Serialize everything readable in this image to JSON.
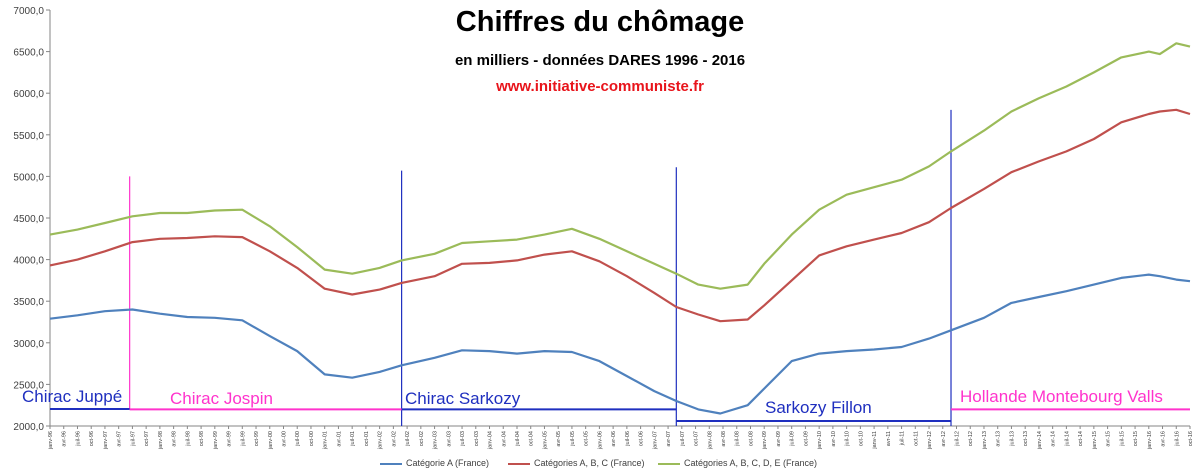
{
  "header": {
    "title": "Chiffres du chômage",
    "subtitle": "en milliers - données DARES 1996 - 2016",
    "source_url": "www.initiative-communiste.fr"
  },
  "colors": {
    "cat_a": "#4f81bd",
    "cat_abc": "#c0504d",
    "cat_abcde": "#9bbb59",
    "period_blue": "#1f2fbf",
    "period_magenta": "#ff33cc"
  },
  "periods": [
    {
      "label": "Chirac Juppé",
      "color": "#1f2fbf",
      "start": 1996.0
    },
    {
      "label": "Chirac Jospin",
      "color": "#ff33cc",
      "start": 1997.45
    },
    {
      "label": "Chirac Sarkozy",
      "color": "#1f2fbf",
      "start": 2002.4
    },
    {
      "label": "Sarkozy Fillon",
      "color": "#1f2fbf",
      "start": 2007.4
    },
    {
      "label": "Hollande Montebourg Valls",
      "color": "#ff33cc",
      "start": 2012.4
    }
  ],
  "chart_data": {
    "type": "line",
    "title": "Chiffres du chômage",
    "subtitle": "en milliers - données DARES 1996 - 2016",
    "xlabel": "",
    "ylabel": "",
    "ylim": [
      2000,
      7000
    ],
    "xlim": [
      1996.0,
      2016.75
    ],
    "y_ticks": [
      "2000,0",
      "2500,0",
      "3000,0",
      "3500,0",
      "4000,0",
      "4500,0",
      "5000,0",
      "5500,0",
      "6000,0",
      "6500,0",
      "7000,0"
    ],
    "x_tick_labels": [
      "janv-96",
      "avr-96",
      "juil-96",
      "oct-96",
      "janv-97",
      "avr-97",
      "juil-97",
      "oct-97",
      "janv-98",
      "avr-98",
      "juil-98",
      "oct-98",
      "janv-99",
      "avr-99",
      "juil-99",
      "oct-99",
      "janv-00",
      "avr-00",
      "juil-00",
      "oct-00",
      "janv-01",
      "avr-01",
      "juil-01",
      "oct-01",
      "janv-02",
      "avr-02",
      "juil-02",
      "oct-02",
      "janv-03",
      "avr-03",
      "juil-03",
      "oct-03",
      "janv-04",
      "avr-04",
      "juil-04",
      "oct-04",
      "janv-05",
      "avr-05",
      "juil-05",
      "oct-05",
      "janv-06",
      "avr-06",
      "juil-06",
      "oct-06",
      "janv-07",
      "avr-07",
      "juil-07",
      "oct-07",
      "janv-08",
      "avr-08",
      "juil-08",
      "oct-08",
      "janv-09",
      "avr-09",
      "juil-09",
      "oct-09",
      "janv-10",
      "avr-10",
      "juil-10",
      "oct-10",
      "janv-11",
      "avr-11",
      "juil-11",
      "oct-11",
      "janv-12",
      "avr-12",
      "juil-12",
      "oct-12",
      "janv-13",
      "avr-13",
      "juil-13",
      "oct-13",
      "janv-14",
      "avr-14",
      "juil-14",
      "oct-14",
      "janv-15",
      "avr-15",
      "juil-15",
      "oct-15",
      "janv-16",
      "avr-16",
      "juil-16",
      "oct-16"
    ],
    "grid": false,
    "legend_position": "bottom",
    "series": [
      {
        "name": "Catégorie A (France)",
        "color": "#4f81bd",
        "points": [
          [
            1996.0,
            3290
          ],
          [
            1996.5,
            3330
          ],
          [
            1997.0,
            3380
          ],
          [
            1997.5,
            3400
          ],
          [
            1998.0,
            3350
          ],
          [
            1998.5,
            3310
          ],
          [
            1999.0,
            3300
          ],
          [
            1999.5,
            3270
          ],
          [
            2000.0,
            3080
          ],
          [
            2000.5,
            2900
          ],
          [
            2001.0,
            2620
          ],
          [
            2001.5,
            2580
          ],
          [
            2002.0,
            2650
          ],
          [
            2002.4,
            2730
          ],
          [
            2003.0,
            2820
          ],
          [
            2003.5,
            2910
          ],
          [
            2004.0,
            2900
          ],
          [
            2004.5,
            2870
          ],
          [
            2005.0,
            2900
          ],
          [
            2005.5,
            2890
          ],
          [
            2006.0,
            2780
          ],
          [
            2006.5,
            2600
          ],
          [
            2007.0,
            2420
          ],
          [
            2007.4,
            2300
          ],
          [
            2007.8,
            2200
          ],
          [
            2008.2,
            2150
          ],
          [
            2008.7,
            2250
          ],
          [
            2009.0,
            2450
          ],
          [
            2009.5,
            2780
          ],
          [
            2010.0,
            2870
          ],
          [
            2010.5,
            2900
          ],
          [
            2011.0,
            2920
          ],
          [
            2011.5,
            2950
          ],
          [
            2012.0,
            3050
          ],
          [
            2012.4,
            3150
          ],
          [
            2013.0,
            3300
          ],
          [
            2013.5,
            3480
          ],
          [
            2014.0,
            3550
          ],
          [
            2014.5,
            3620
          ],
          [
            2015.0,
            3700
          ],
          [
            2015.5,
            3780
          ],
          [
            2016.0,
            3820
          ],
          [
            2016.2,
            3800
          ],
          [
            2016.5,
            3760
          ],
          [
            2016.75,
            3740
          ]
        ]
      },
      {
        "name": "Catégories A, B, C (France)",
        "color": "#c0504d",
        "points": [
          [
            1996.0,
            3930
          ],
          [
            1996.5,
            4000
          ],
          [
            1997.0,
            4100
          ],
          [
            1997.5,
            4210
          ],
          [
            1998.0,
            4250
          ],
          [
            1998.5,
            4260
          ],
          [
            1999.0,
            4280
          ],
          [
            1999.5,
            4270
          ],
          [
            2000.0,
            4100
          ],
          [
            2000.5,
            3900
          ],
          [
            2001.0,
            3650
          ],
          [
            2001.5,
            3580
          ],
          [
            2002.0,
            3640
          ],
          [
            2002.4,
            3720
          ],
          [
            2003.0,
            3800
          ],
          [
            2003.5,
            3950
          ],
          [
            2004.0,
            3960
          ],
          [
            2004.5,
            3990
          ],
          [
            2005.0,
            4060
          ],
          [
            2005.5,
            4100
          ],
          [
            2006.0,
            3980
          ],
          [
            2006.5,
            3800
          ],
          [
            2007.0,
            3600
          ],
          [
            2007.4,
            3430
          ],
          [
            2007.8,
            3340
          ],
          [
            2008.2,
            3260
          ],
          [
            2008.7,
            3280
          ],
          [
            2009.0,
            3450
          ],
          [
            2009.5,
            3750
          ],
          [
            2010.0,
            4050
          ],
          [
            2010.5,
            4160
          ],
          [
            2011.0,
            4240
          ],
          [
            2011.5,
            4320
          ],
          [
            2012.0,
            4450
          ],
          [
            2012.4,
            4620
          ],
          [
            2013.0,
            4850
          ],
          [
            2013.5,
            5050
          ],
          [
            2014.0,
            5180
          ],
          [
            2014.5,
            5300
          ],
          [
            2015.0,
            5450
          ],
          [
            2015.5,
            5650
          ],
          [
            2016.0,
            5750
          ],
          [
            2016.2,
            5780
          ],
          [
            2016.5,
            5800
          ],
          [
            2016.75,
            5750
          ]
        ]
      },
      {
        "name": "Catégories A, B, C, D, E (France)",
        "color": "#9bbb59",
        "points": [
          [
            1996.0,
            4300
          ],
          [
            1996.5,
            4360
          ],
          [
            1997.0,
            4440
          ],
          [
            1997.5,
            4520
          ],
          [
            1998.0,
            4560
          ],
          [
            1998.5,
            4560
          ],
          [
            1999.0,
            4590
          ],
          [
            1999.5,
            4600
          ],
          [
            2000.0,
            4400
          ],
          [
            2000.5,
            4150
          ],
          [
            2001.0,
            3880
          ],
          [
            2001.5,
            3830
          ],
          [
            2002.0,
            3900
          ],
          [
            2002.4,
            3990
          ],
          [
            2003.0,
            4070
          ],
          [
            2003.5,
            4200
          ],
          [
            2004.0,
            4220
          ],
          [
            2004.5,
            4240
          ],
          [
            2005.0,
            4300
          ],
          [
            2005.5,
            4370
          ],
          [
            2006.0,
            4250
          ],
          [
            2006.5,
            4100
          ],
          [
            2007.0,
            3950
          ],
          [
            2007.4,
            3830
          ],
          [
            2007.8,
            3700
          ],
          [
            2008.2,
            3650
          ],
          [
            2008.7,
            3700
          ],
          [
            2009.0,
            3950
          ],
          [
            2009.5,
            4300
          ],
          [
            2010.0,
            4600
          ],
          [
            2010.5,
            4780
          ],
          [
            2011.0,
            4870
          ],
          [
            2011.5,
            4960
          ],
          [
            2012.0,
            5120
          ],
          [
            2012.4,
            5300
          ],
          [
            2013.0,
            5550
          ],
          [
            2013.5,
            5780
          ],
          [
            2014.0,
            5940
          ],
          [
            2014.5,
            6080
          ],
          [
            2015.0,
            6250
          ],
          [
            2015.5,
            6430
          ],
          [
            2016.0,
            6500
          ],
          [
            2016.2,
            6470
          ],
          [
            2016.5,
            6600
          ],
          [
            2016.75,
            6560
          ]
        ]
      }
    ]
  }
}
